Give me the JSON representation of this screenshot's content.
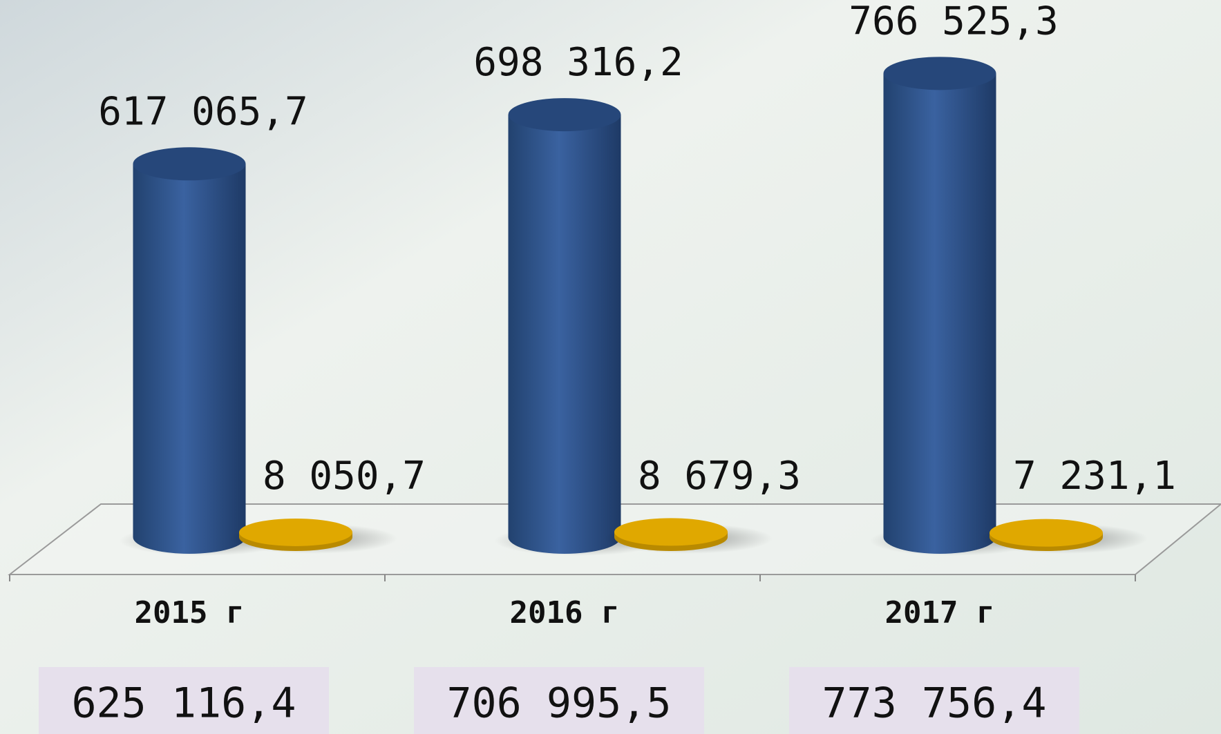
{
  "chart_data": {
    "type": "bar3d",
    "categories": [
      "2015 г",
      "2016 г",
      "2017 г"
    ],
    "series": [
      {
        "color": "#2f568f",
        "values": [
          617065.7,
          698316.2,
          766525.3
        ],
        "value_labels": [
          "617 065,7",
          "698 316,2",
          "766 525,3"
        ]
      },
      {
        "color": "#e0a800",
        "values": [
          8050.7,
          8679.3,
          7231.1
        ],
        "value_labels": [
          "8 050,7",
          "8 679,3",
          "7 231,1"
        ]
      }
    ],
    "totals": [
      625116.4,
      706995.5,
      773756.4
    ],
    "total_labels": [
      "625 116,4",
      "706 995,5",
      "773 756,4"
    ],
    "ylim": [
      0,
      800000
    ]
  }
}
